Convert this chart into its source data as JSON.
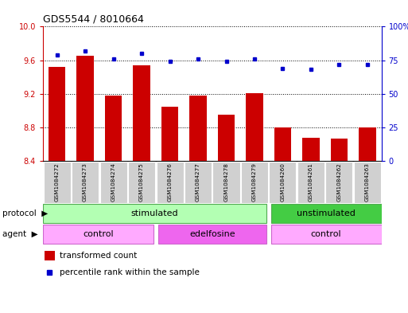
{
  "title": "GDS5544 / 8010664",
  "samples": [
    "GSM1084272",
    "GSM1084273",
    "GSM1084274",
    "GSM1084275",
    "GSM1084276",
    "GSM1084277",
    "GSM1084278",
    "GSM1084279",
    "GSM1084260",
    "GSM1084261",
    "GSM1084262",
    "GSM1084263"
  ],
  "transformed_count": [
    9.52,
    9.65,
    9.18,
    9.54,
    9.05,
    9.18,
    8.95,
    9.21,
    8.8,
    8.68,
    8.67,
    8.8
  ],
  "percentile_rank": [
    79,
    82,
    76,
    80,
    74,
    76,
    74,
    76,
    69,
    68,
    72,
    72
  ],
  "ylim_left": [
    8.4,
    10.0
  ],
  "ylim_right": [
    0,
    100
  ],
  "yticks_left": [
    8.4,
    8.8,
    9.2,
    9.6,
    10.0
  ],
  "yticks_right": [
    0,
    25,
    50,
    75,
    100
  ],
  "bar_color": "#cc0000",
  "dot_color": "#0000cc",
  "protocol_labels": [
    "stimulated",
    "unstimulated"
  ],
  "protocol_color_light": "#b3ffb3",
  "protocol_color_dark": "#33cc33",
  "agent_labels": [
    "control",
    "edelfosine",
    "control"
  ],
  "agent_color_light": "#ffaaff",
  "agent_color_dark": "#ee66ee",
  "legend_bar_label": "transformed count",
  "legend_dot_label": "percentile rank within the sample",
  "xlabel_protocol": "protocol",
  "xlabel_agent": "agent"
}
